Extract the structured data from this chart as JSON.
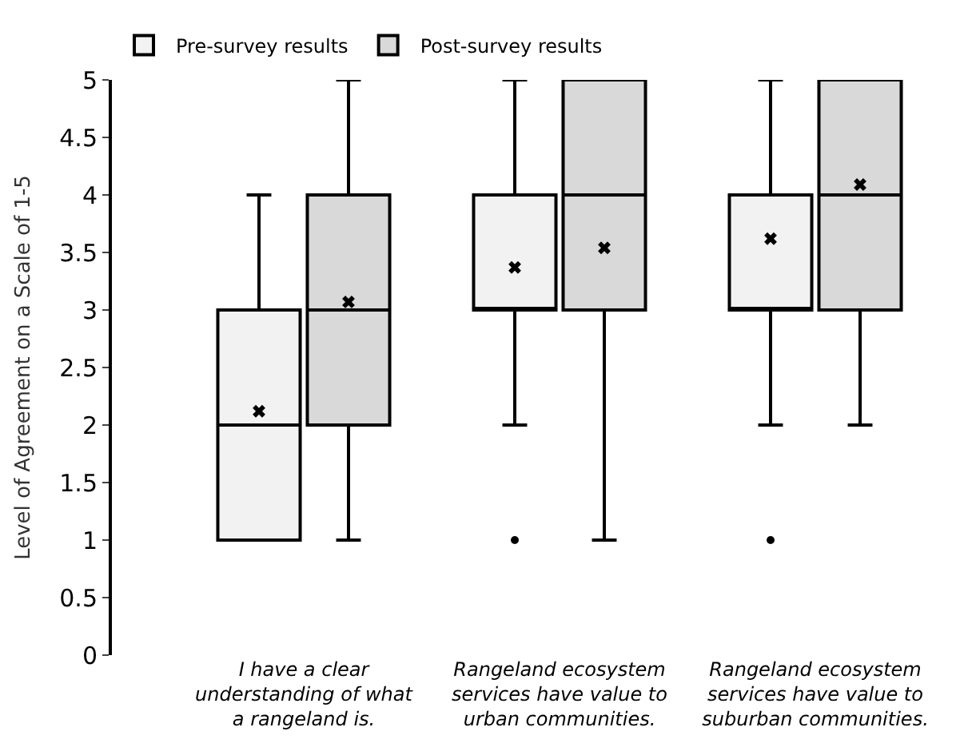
{
  "chart_data": {
    "type": "box",
    "ylabel": "Level of Agreement on a Scale of 1-5",
    "categories": [
      "I have a clear understanding of what a rangeland is.",
      "Rangeland ecosystem services have value to urban communities.",
      "Rangeland ecosystem services have value to suburban communities."
    ],
    "series": [
      {
        "name": "Pre-survey results",
        "color": "#f2f2f2",
        "boxes": [
          {
            "low": 1,
            "q1": 1,
            "median": 2,
            "q3": 3,
            "high": 4,
            "mean": 2.12
          },
          {
            "low": 2,
            "q1": 3,
            "median": 3,
            "q3": 4,
            "high": 5,
            "mean": 3.37,
            "outliers": [
              1
            ]
          },
          {
            "low": 2,
            "q1": 3,
            "median": 3,
            "q3": 4,
            "high": 5,
            "mean": 3.62,
            "outliers": [
              1
            ]
          }
        ]
      },
      {
        "name": "Post-survey results",
        "color": "#d9d9d9",
        "boxes": [
          {
            "low": 1,
            "q1": 2,
            "median": 3,
            "q3": 4,
            "high": 5,
            "mean": 3.07
          },
          {
            "low": 1,
            "q1": 3,
            "median": 4,
            "q3": 5,
            "high": 5,
            "mean": 3.54
          },
          {
            "low": 2,
            "q1": 3,
            "median": 4,
            "q3": 5,
            "high": 5,
            "mean": 4.09
          }
        ]
      }
    ],
    "ylim": [
      0,
      5
    ],
    "yticks": [
      0,
      0.5,
      1,
      1.5,
      2,
      2.5,
      3,
      3.5,
      4,
      4.5,
      5
    ],
    "legend": "top left",
    "marker": "cross"
  }
}
